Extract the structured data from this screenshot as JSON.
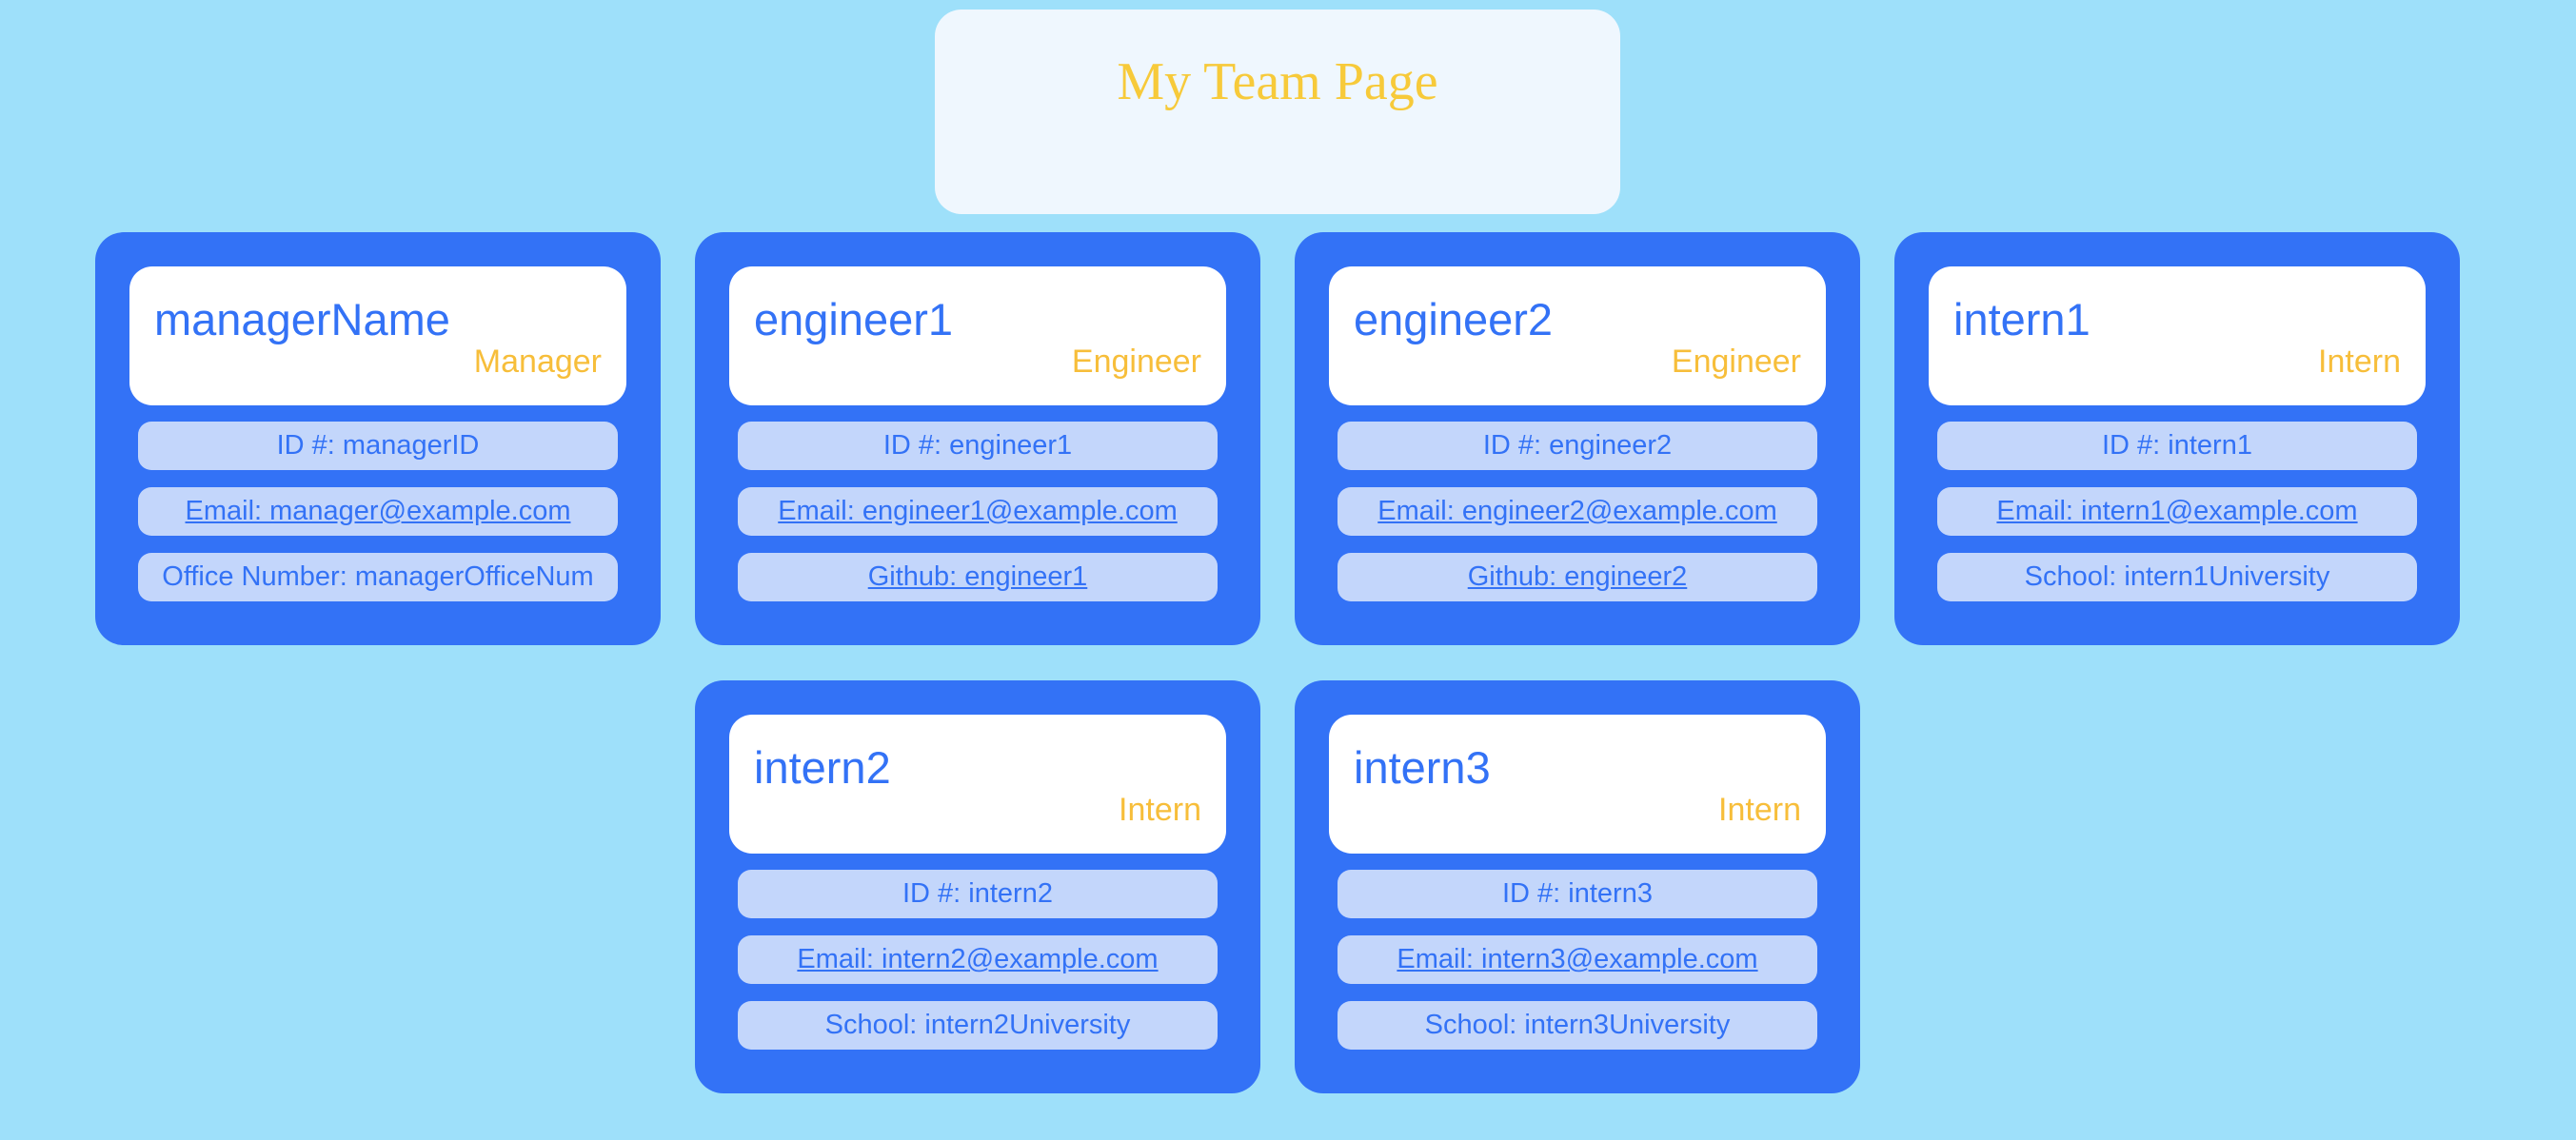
{
  "page": {
    "title": "My Team Page"
  },
  "colors": {
    "background": "#9ee0fa",
    "header_bg": "#eff7fe",
    "title": "#f7ca3a",
    "card_bg": "#3372f6",
    "card_head_bg": "#ffffff",
    "name_text": "#3372f6",
    "role_text": "#f7be3a",
    "field_bg": "#c3d6fb",
    "field_text": "#3372f6"
  },
  "team": [
    {
      "name": "managerName",
      "role": "Manager",
      "id": "ID #: managerID",
      "email": "Email: manager@example.com",
      "extra": "Office Number: managerOfficeNum",
      "extra_is_link": false
    },
    {
      "name": "engineer1",
      "role": "Engineer",
      "id": "ID #: engineer1",
      "email": "Email: engineer1@example.com",
      "extra": "Github: engineer1",
      "extra_is_link": true
    },
    {
      "name": "engineer2",
      "role": "Engineer",
      "id": "ID #: engineer2",
      "email": "Email: engineer2@example.com",
      "extra": "Github: engineer2",
      "extra_is_link": true
    },
    {
      "name": "intern1",
      "role": "Intern",
      "id": "ID #: intern1",
      "email": "Email: intern1@example.com",
      "extra": "School: intern1University",
      "extra_is_link": false
    },
    {
      "name": "intern2",
      "role": "Intern",
      "id": "ID #: intern2",
      "email": "Email: intern2@example.com",
      "extra": "School: intern2University",
      "extra_is_link": false
    },
    {
      "name": "intern3",
      "role": "Intern",
      "id": "ID #: intern3",
      "email": "Email: intern3@example.com",
      "extra": "School: intern3University",
      "extra_is_link": false
    }
  ]
}
